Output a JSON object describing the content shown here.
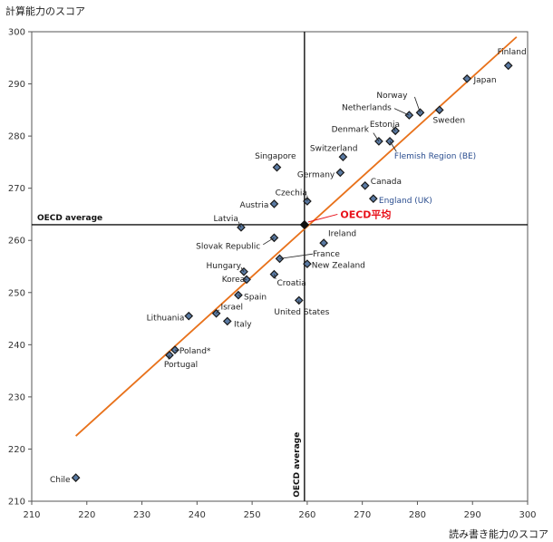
{
  "chart_data": {
    "type": "scatter",
    "xlabel": "読み書き能力のスコア",
    "ylabel": "計算能力のスコア",
    "xlim": [
      210,
      300
    ],
    "ylim": [
      210,
      300
    ],
    "x_ticks": [
      210,
      220,
      230,
      240,
      250,
      260,
      270,
      280,
      290,
      300
    ],
    "y_ticks": [
      210,
      220,
      230,
      240,
      250,
      260,
      270,
      280,
      290,
      300
    ],
    "grid": false,
    "oecd_average": {
      "x": 259.5,
      "y": 263,
      "h_label": "OECD average",
      "v_label": "OECD average",
      "callout": "OECD平均"
    },
    "trend_line": {
      "x": [
        218,
        298
      ],
      "y": [
        222.5,
        299
      ]
    },
    "points": [
      {
        "label": "Finland",
        "x": 296.5,
        "y": 293.5,
        "lx": 294.5,
        "ly": 296.2,
        "anchor": "start"
      },
      {
        "label": "Japan",
        "x": 289,
        "y": 291,
        "lx": 290.2,
        "ly": 290.8,
        "anchor": "start"
      },
      {
        "label": "Norway",
        "x": 280.5,
        "y": 284.5,
        "lx": 278.2,
        "ly": 287.8,
        "anchor": "end"
      },
      {
        "label": "Netherlands",
        "x": 278.5,
        "y": 284,
        "lx": 275.3,
        "ly": 285.5,
        "anchor": "end"
      },
      {
        "label": "Sweden",
        "x": 284,
        "y": 285,
        "lx": 282.8,
        "ly": 283.1,
        "anchor": "start"
      },
      {
        "label": "Estonia",
        "x": 276,
        "y": 281,
        "lx": 276.8,
        "ly": 282.3,
        "anchor": "end"
      },
      {
        "label": "Denmark",
        "x": 273,
        "y": 279,
        "lx": 271.2,
        "ly": 281.3,
        "anchor": "end"
      },
      {
        "label": "Flemish Region (BE)",
        "x": 275,
        "y": 279,
        "lx": 275.8,
        "ly": 276.2,
        "anchor": "start",
        "color": "blue"
      },
      {
        "label": "Switzerland",
        "x": 266.5,
        "y": 276,
        "lx": 260.5,
        "ly": 277.7,
        "anchor": "start"
      },
      {
        "label": "Singapore",
        "x": 254.5,
        "y": 274,
        "lx": 250.5,
        "ly": 276.2,
        "anchor": "start"
      },
      {
        "label": "Germany",
        "x": 266,
        "y": 273,
        "lx": 265,
        "ly": 272.6,
        "anchor": "end"
      },
      {
        "label": "Canada",
        "x": 270.5,
        "y": 270.5,
        "lx": 271.5,
        "ly": 271.3,
        "anchor": "start"
      },
      {
        "label": "England (UK)",
        "x": 272,
        "y": 268,
        "lx": 273,
        "ly": 267.7,
        "anchor": "start",
        "color": "blue"
      },
      {
        "label": "Czechia",
        "x": 260,
        "y": 267.5,
        "lx": 260,
        "ly": 269.2,
        "anchor": "end"
      },
      {
        "label": "Austria",
        "x": 254,
        "y": 267,
        "lx": 253,
        "ly": 266.8,
        "anchor": "end"
      },
      {
        "label": "Latvia",
        "x": 248,
        "y": 262.5,
        "lx": 247.5,
        "ly": 264.2,
        "anchor": "end"
      },
      {
        "label": "Ireland",
        "x": 263,
        "y": 259.5,
        "lx": 263.8,
        "ly": 261.3,
        "anchor": "start"
      },
      {
        "label": "Slovak Republic",
        "x": 254,
        "y": 260.5,
        "lx": 251.5,
        "ly": 258.9,
        "anchor": "end"
      },
      {
        "label": "France",
        "x": 255,
        "y": 256.5,
        "lx": 261,
        "ly": 257.4,
        "anchor": "start"
      },
      {
        "label": "New Zealand",
        "x": 260,
        "y": 255.5,
        "lx": 260.8,
        "ly": 255.3,
        "anchor": "start"
      },
      {
        "label": "Hungary",
        "x": 248.5,
        "y": 254,
        "lx": 248,
        "ly": 255.2,
        "anchor": "end"
      },
      {
        "label": "Korea",
        "x": 249,
        "y": 252.5,
        "lx": 248.7,
        "ly": 252.6,
        "anchor": "end"
      },
      {
        "label": "Croatia",
        "x": 254,
        "y": 253.5,
        "lx": 254.5,
        "ly": 251.9,
        "anchor": "start"
      },
      {
        "label": "Spain",
        "x": 247.5,
        "y": 249.5,
        "lx": 248.5,
        "ly": 249.2,
        "anchor": "start"
      },
      {
        "label": "United States",
        "x": 258.5,
        "y": 248.5,
        "lx": 254,
        "ly": 246.3,
        "anchor": "start"
      },
      {
        "label": "Israel",
        "x": 243.5,
        "y": 246,
        "lx": 244.3,
        "ly": 247.3,
        "anchor": "start"
      },
      {
        "label": "Lithuania",
        "x": 238.5,
        "y": 245.5,
        "lx": 237.7,
        "ly": 245.2,
        "anchor": "end"
      },
      {
        "label": "Italy",
        "x": 245.5,
        "y": 244.5,
        "lx": 246.7,
        "ly": 244,
        "anchor": "start"
      },
      {
        "label": "Poland*",
        "x": 236,
        "y": 239,
        "lx": 236.8,
        "ly": 238.8,
        "anchor": "start"
      },
      {
        "label": "Portugal",
        "x": 235,
        "y": 238,
        "lx": 234,
        "ly": 236.2,
        "anchor": "start"
      },
      {
        "label": "Chile",
        "x": 218,
        "y": 214.5,
        "lx": 217,
        "ly": 214.2,
        "anchor": "end"
      }
    ]
  }
}
